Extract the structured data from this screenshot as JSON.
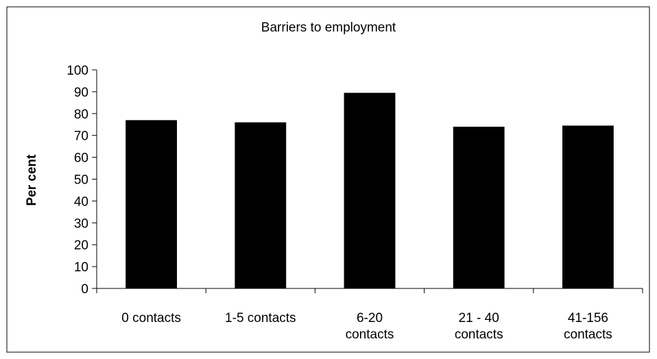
{
  "chart_data": {
    "type": "bar",
    "title": "Barriers to employment",
    "xlabel": "",
    "ylabel": "Per cent",
    "ylim": [
      0,
      100
    ],
    "yticks": [
      0,
      10,
      20,
      30,
      40,
      50,
      60,
      70,
      80,
      90,
      100
    ],
    "categories": [
      [
        "0 contacts"
      ],
      [
        "1-5 contacts"
      ],
      [
        "6-20",
        "contacts"
      ],
      [
        "21 - 40",
        "contacts"
      ],
      [
        "41-156",
        "contacts"
      ]
    ],
    "values": [
      77,
      76,
      89.5,
      74,
      74.5
    ],
    "bar_color": "#000000",
    "grid": false,
    "legend": "none"
  }
}
